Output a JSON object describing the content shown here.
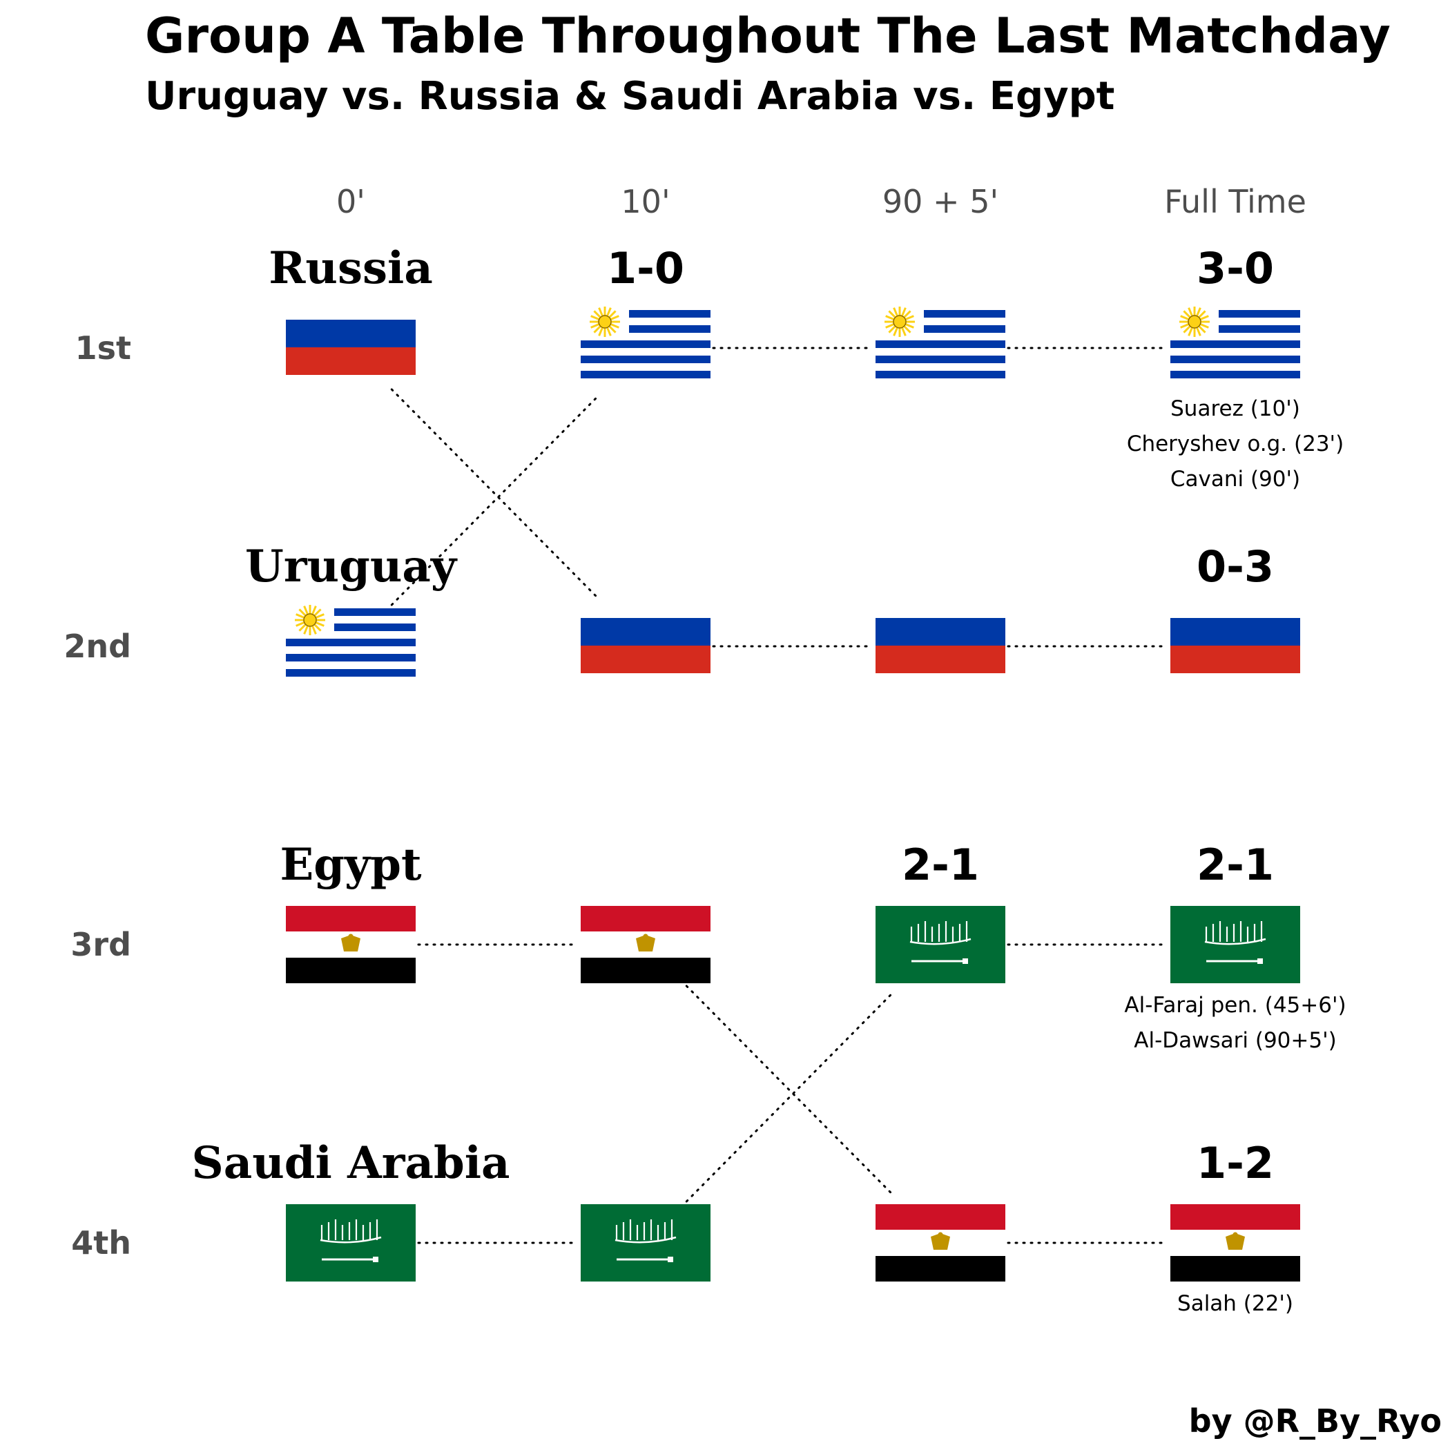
{
  "chart_data": {
    "type": "bump",
    "title": "Group A Table Throughout The Last Matchday",
    "subtitle": "Uruguay vs. Russia & Saudi Arabia vs. Egypt",
    "x": [
      "0'",
      "10'",
      "90 + 5'",
      "Full Time"
    ],
    "ranks": [
      "1st",
      "2nd",
      "3rd",
      "4th"
    ],
    "teams": [
      {
        "name": "Russia",
        "positions": [
          1,
          2,
          2,
          2
        ]
      },
      {
        "name": "Uruguay",
        "positions": [
          2,
          1,
          1,
          1
        ]
      },
      {
        "name": "Egypt",
        "positions": [
          3,
          3,
          4,
          4
        ]
      },
      {
        "name": "Saudi Arabia",
        "positions": [
          4,
          4,
          3,
          3
        ]
      }
    ],
    "scores": [
      {
        "col": 1,
        "rank": 1,
        "text": "1-0"
      },
      {
        "col": 3,
        "rank": 1,
        "text": "3-0"
      },
      {
        "col": 3,
        "rank": 2,
        "text": "0-3"
      },
      {
        "col": 2,
        "rank": 3,
        "text": "2-1"
      },
      {
        "col": 3,
        "rank": 3,
        "text": "2-1"
      },
      {
        "col": 3,
        "rank": 4,
        "text": "1-2"
      }
    ],
    "scorers": [
      {
        "rank": 1,
        "lines": [
          "Suarez (10')",
          "Cheryshev o.g. (23')",
          "Cavani (90')"
        ]
      },
      {
        "rank": 3,
        "lines": [
          "Al-Faraj pen. (45+6')",
          "Al-Dawsari (90+5')"
        ]
      },
      {
        "rank": 4,
        "lines": [
          "Salah (22')"
        ]
      }
    ],
    "credit": "by @R_By_Ryo",
    "colors": {
      "russia_blue": "#0039a6",
      "russia_red": "#d52b1e",
      "uruguay_blue": "#0038a8",
      "uruguay_sun": "#fcd116",
      "egypt_red": "#ce1126",
      "egypt_black": "#000000",
      "egypt_eagle": "#c09300",
      "saudi_green": "#006c35"
    }
  }
}
